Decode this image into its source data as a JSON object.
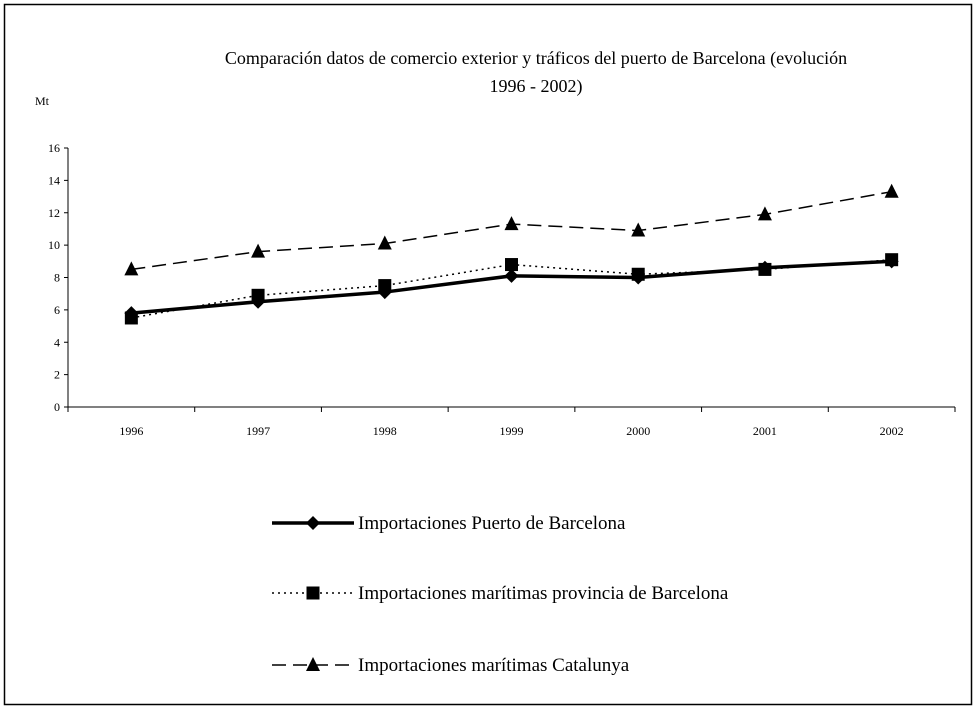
{
  "chart_data": {
    "type": "line",
    "title_lines": [
      "Comparación datos de comercio exterior y tráficos del puerto de Barcelona (evolución",
      "1996 - 2002)"
    ],
    "ylabel": "Mt",
    "xlabel": "",
    "categories": [
      "1996",
      "1997",
      "1998",
      "1999",
      "2000",
      "2001",
      "2002"
    ],
    "ylim": [
      0,
      16
    ],
    "yticks": [
      0,
      2,
      4,
      6,
      8,
      10,
      12,
      14,
      16
    ],
    "grid": false,
    "legend_position": "bottom",
    "series": [
      {
        "name": "Importaciones Puerto de Barcelona",
        "values": [
          5.8,
          6.5,
          7.1,
          8.1,
          8.0,
          8.6,
          9.0
        ],
        "color": "#000000",
        "line_style": "solid-thick",
        "marker": "diamond"
      },
      {
        "name": "Importaciones marítimas provincia de Barcelona",
        "values": [
          5.5,
          6.9,
          7.5,
          8.8,
          8.2,
          8.5,
          9.1
        ],
        "color": "#000000",
        "line_style": "dotted",
        "marker": "square"
      },
      {
        "name": "Importaciones marítimas Catalunya",
        "values": [
          8.5,
          9.6,
          10.1,
          11.3,
          10.9,
          11.9,
          13.3
        ],
        "color": "#000000",
        "line_style": "dashed",
        "marker": "triangle"
      }
    ]
  }
}
